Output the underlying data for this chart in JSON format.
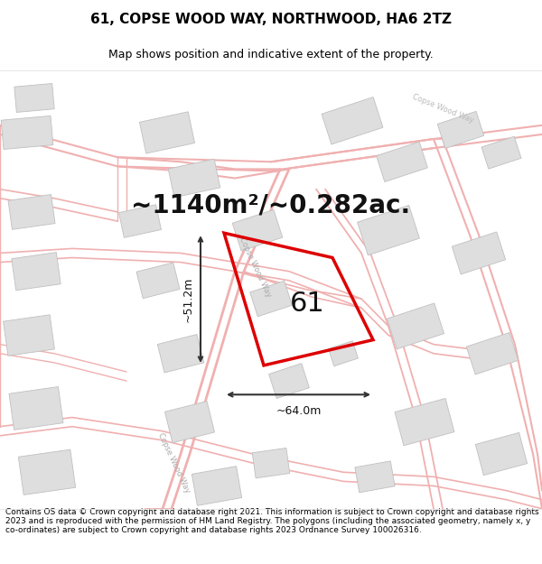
{
  "title": "61, COPSE WOOD WAY, NORTHWOOD, HA6 2TZ",
  "subtitle": "Map shows position and indicative extent of the property.",
  "area_text": "~1140m²/~0.282ac.",
  "label_61": "61",
  "dim_width": "~64.0m",
  "dim_height": "~51.2m",
  "road_label_top": "Copse Wood Way",
  "road_label_left": "Copse Wood Way",
  "road_label_mid": "Copse Wood Way",
  "footer": "Contains OS data © Crown copyright and database right 2021. This information is subject to Crown copyright and database rights 2023 and is reproduced with the permission of HM Land Registry. The polygons (including the associated geometry, namely x, y co-ordinates) are subject to Crown copyright and database rights 2023 Ordnance Survey 100026316.",
  "map_bg": "#f8f7f5",
  "road_color": "#f0b0b0",
  "road_color2": "#e89898",
  "building_color": "#dedede",
  "building_edge": "#c0c0c0",
  "plot_color": "#dd0000",
  "arrow_color": "#333333",
  "title_fontsize": 11,
  "subtitle_fontsize": 9,
  "area_fontsize": 20,
  "label_fontsize": 22,
  "footer_fontsize": 6.5,
  "dim_fontsize": 9
}
